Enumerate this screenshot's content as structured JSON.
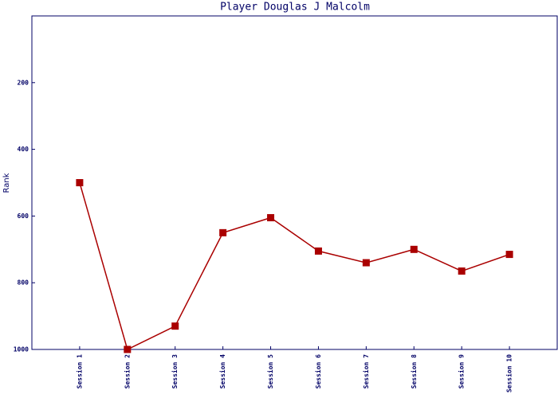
{
  "chart_data": {
    "type": "line",
    "title": "Player Douglas J Malcolm",
    "y_label": "Rank",
    "categories": [
      "Session 1",
      "Session 2",
      "Session 3",
      "Session 4",
      "Session 5",
      "Session 6",
      "Session 7",
      "Session 8",
      "Session 9",
      "Session 10"
    ],
    "values": [
      500,
      1000,
      930,
      650,
      605,
      705,
      740,
      700,
      765,
      715
    ],
    "color": "#aa0000",
    "ylim": [
      0,
      1000
    ],
    "y_inverted": true,
    "yticks": [
      200,
      400,
      600,
      800,
      1000
    ]
  }
}
